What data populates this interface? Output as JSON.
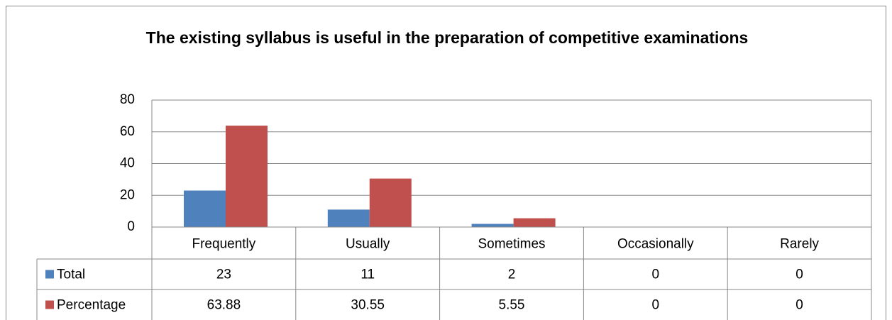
{
  "chart_data": {
    "type": "bar",
    "title": "The existing syllabus is useful in the preparation of competitive examinations",
    "categories": [
      "Frequently",
      "Usually",
      "Sometimes",
      "Occasionally",
      "Rarely"
    ],
    "series": [
      {
        "name": "Total",
        "color": "#4f81bd",
        "values": [
          23,
          11,
          2,
          0,
          0
        ]
      },
      {
        "name": "Percentage",
        "color": "#c0504d",
        "values": [
          63.88,
          30.55,
          5.55,
          0,
          0
        ]
      }
    ],
    "ylim": [
      0,
      80
    ],
    "yticks": [
      0,
      20,
      40,
      60,
      80
    ],
    "grid": true,
    "data_table": true
  }
}
